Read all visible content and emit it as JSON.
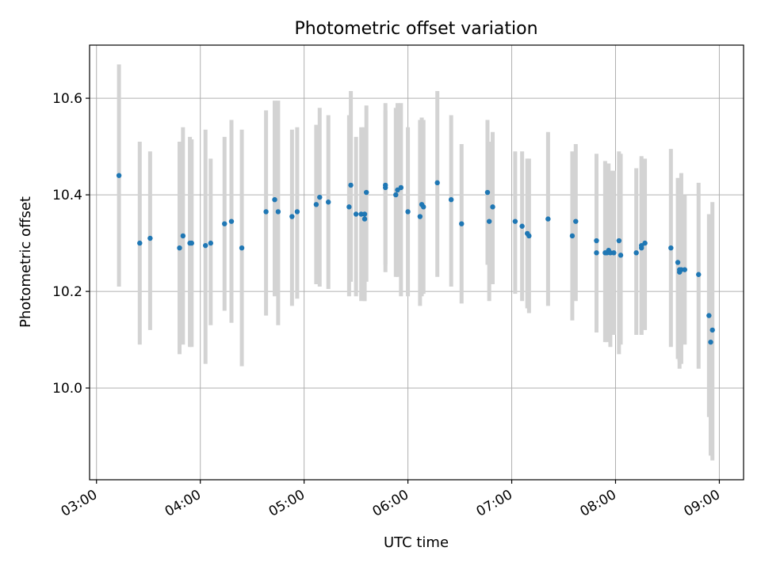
{
  "chart_data": {
    "type": "scatter",
    "title": "Photometric offset variation",
    "xlabel": "UTC time",
    "ylabel": "Photometric offset",
    "xlim": [
      "02:56",
      "09:14"
    ],
    "ylim": [
      9.81,
      10.71
    ],
    "x_ticks": [
      "03:00",
      "04:00",
      "05:00",
      "06:00",
      "07:00",
      "08:00",
      "09:00"
    ],
    "y_ticks": [
      "10.0",
      "10.2",
      "10.4",
      "10.6"
    ],
    "y_tick_values": [
      10.0,
      10.2,
      10.4,
      10.6
    ],
    "grid": true,
    "colors": {
      "points": "#1f77b4",
      "error_bars": "#d3d3d3",
      "grid": "#b0b0b0"
    },
    "series": [
      {
        "x": [
          "03:13",
          "03:25",
          "03:31",
          "03:48",
          "03:50",
          "03:54",
          "03:55",
          "04:03",
          "04:06",
          "04:14",
          "04:18",
          "04:24",
          "04:38",
          "04:43",
          "04:45",
          "04:53",
          "04:56",
          "05:07",
          "05:09",
          "05:14",
          "05:26",
          "05:27",
          "05:30",
          "05:33",
          "05:35",
          "05:35",
          "05:36",
          "05:47",
          "05:47",
          "05:53",
          "05:54",
          "05:56",
          "06:00",
          "06:07",
          "06:08",
          "06:09",
          "06:17",
          "06:25",
          "06:31",
          "06:46",
          "06:47",
          "06:49",
          "07:02",
          "07:06",
          "07:09",
          "07:10",
          "07:21",
          "07:35",
          "07:37",
          "07:49",
          "07:49",
          "07:54",
          "07:55",
          "07:56",
          "07:57",
          "07:59",
          "08:02",
          "08:03",
          "08:12",
          "08:15",
          "08:15",
          "08:17",
          "08:32",
          "08:36",
          "08:37",
          "08:37",
          "08:38",
          "08:40",
          "08:48",
          "08:54",
          "08:55",
          "08:56"
        ],
        "y": [
          10.44,
          10.3,
          10.31,
          10.29,
          10.315,
          10.3,
          10.3,
          10.295,
          10.3,
          10.34,
          10.345,
          10.29,
          10.365,
          10.39,
          10.365,
          10.355,
          10.365,
          10.38,
          10.395,
          10.385,
          10.375,
          10.42,
          10.36,
          10.36,
          10.35,
          10.36,
          10.405,
          10.415,
          10.42,
          10.4,
          10.41,
          10.415,
          10.365,
          10.355,
          10.38,
          10.375,
          10.425,
          10.39,
          10.34,
          10.405,
          10.345,
          10.375,
          10.345,
          10.335,
          10.32,
          10.315,
          10.35,
          10.315,
          10.345,
          10.305,
          10.28,
          10.28,
          10.28,
          10.285,
          10.28,
          10.28,
          10.305,
          10.275,
          10.28,
          10.29,
          10.295,
          10.3,
          10.29,
          10.26,
          10.24,
          10.245,
          10.245,
          10.245,
          10.235,
          10.15,
          10.095,
          10.12
        ],
        "yerr_low": [
          10.21,
          10.09,
          10.12,
          10.07,
          10.09,
          10.085,
          10.085,
          10.05,
          10.13,
          10.16,
          10.135,
          10.045,
          10.15,
          10.19,
          10.13,
          10.17,
          10.185,
          10.215,
          10.21,
          10.205,
          10.19,
          10.22,
          10.19,
          10.18,
          10.18,
          10.18,
          10.22,
          10.255,
          10.24,
          10.23,
          10.23,
          10.19,
          10.19,
          10.17,
          10.19,
          10.195,
          10.23,
          10.21,
          10.175,
          10.255,
          10.18,
          10.215,
          10.195,
          10.18,
          10.165,
          10.155,
          10.17,
          10.14,
          10.18,
          10.125,
          10.115,
          10.095,
          10.095,
          10.1,
          10.085,
          10.11,
          10.07,
          10.09,
          10.11,
          10.11,
          10.11,
          10.12,
          10.085,
          10.06,
          10.04,
          10.055,
          10.05,
          10.09,
          10.04,
          9.94,
          9.86,
          9.85
        ],
        "yerr_high": [
          10.67,
          10.51,
          10.49,
          10.51,
          10.54,
          10.52,
          10.515,
          10.535,
          10.475,
          10.52,
          10.555,
          10.535,
          10.575,
          10.595,
          10.595,
          10.535,
          10.54,
          10.545,
          10.58,
          10.565,
          10.565,
          10.615,
          10.52,
          10.54,
          10.52,
          10.54,
          10.585,
          10.575,
          10.59,
          10.58,
          10.59,
          10.59,
          10.54,
          10.555,
          10.56,
          10.555,
          10.615,
          10.565,
          10.505,
          10.555,
          10.51,
          10.53,
          10.49,
          10.49,
          10.475,
          10.475,
          10.53,
          10.49,
          10.505,
          10.485,
          10.445,
          10.47,
          10.465,
          10.465,
          10.45,
          10.45,
          10.49,
          10.485,
          10.455,
          10.475,
          10.48,
          10.475,
          10.495,
          10.435,
          10.425,
          10.43,
          10.445,
          10.4,
          10.425,
          10.36,
          10.325,
          10.385
        ]
      }
    ]
  }
}
